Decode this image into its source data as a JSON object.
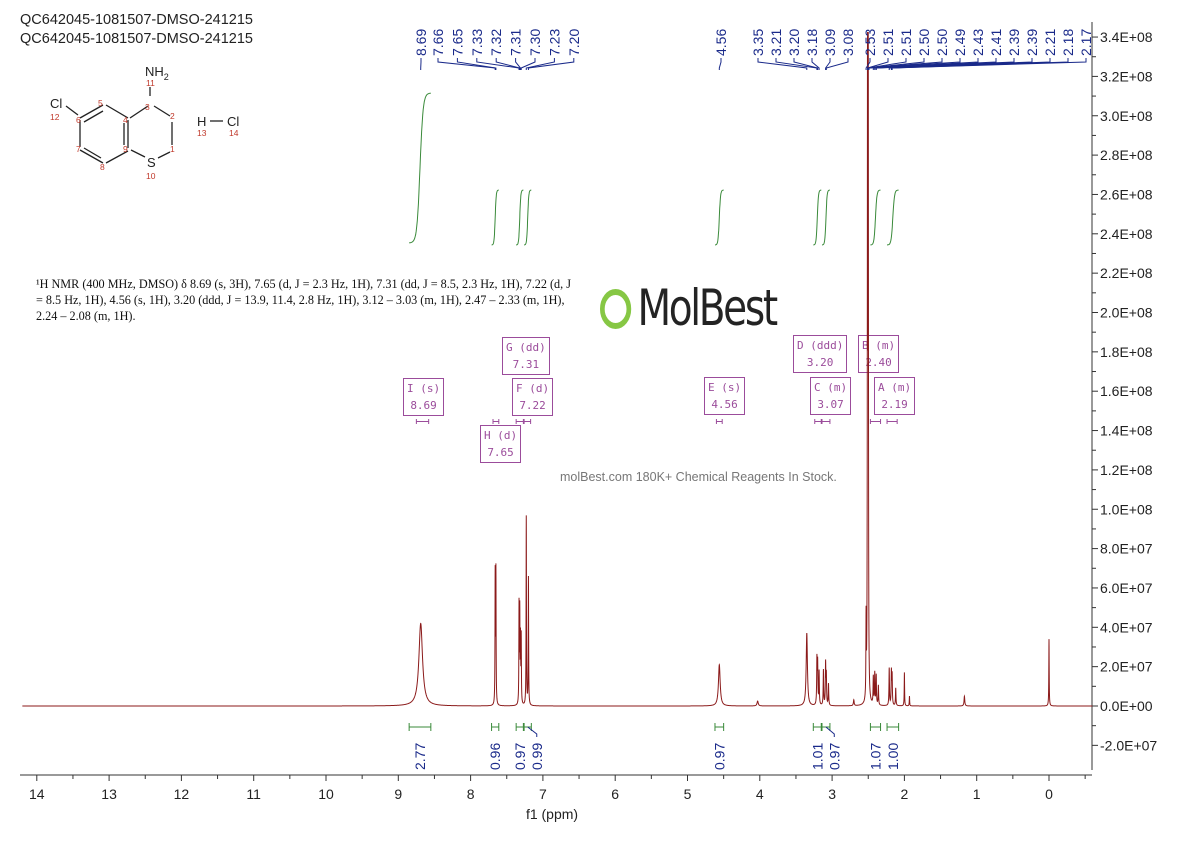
{
  "titles": [
    "QC642045-1081507-DMSO-241215",
    "QC642045-1081507-DMSO-241215"
  ],
  "structure": {
    "atoms": {
      "cl": "Cl",
      "nh2": "NH",
      "nh2_sub": "2",
      "s": "S",
      "h": "H",
      "cl2": "Cl"
    },
    "numbers": [
      "1",
      "2",
      "3",
      "4",
      "5",
      "6",
      "7",
      "8",
      "9",
      "10",
      "11",
      "12",
      "13",
      "14"
    ]
  },
  "nmr_text": "¹H NMR (400 MHz, DMSO) δ 8.69 (s, 3H), 7.65 (d, J = 2.3 Hz, 1H), 7.31 (dd, J = 8.5, 2.3 Hz, 1H), 7.22 (d, J = 8.5 Hz, 1H), 4.56 (s, 1H), 3.20 (ddd, J = 13.9, 11.4, 2.8 Hz, 1H), 3.12 – 3.03 (m, 1H), 2.47 – 2.33 (m, 1H), 2.24 – 2.08 (m, 1H).",
  "watermark": {
    "logo": "MolBest",
    "tagline": "molBest.com 180K+ Chemical Reagents In Stock."
  },
  "multiplets": [
    {
      "label": "I (s)",
      "shift": "8.69"
    },
    {
      "label": "G (dd)",
      "shift": "7.31"
    },
    {
      "label": "F (d)",
      "shift": "7.22"
    },
    {
      "label": "H (d)",
      "shift": "7.65"
    },
    {
      "label": "E (s)",
      "shift": "4.56"
    },
    {
      "label": "D (ddd)",
      "shift": "3.20"
    },
    {
      "label": "B (m)",
      "shift": "2.40"
    },
    {
      "label": "C (m)",
      "shift": "3.07"
    },
    {
      "label": "A (m)",
      "shift": "2.19"
    }
  ],
  "colors": {
    "spectrum": "#8b1a1a",
    "integral": "#3a8a3a",
    "label": "#1a2a8a",
    "multiplet": "#9b4c9b",
    "axis": "#333333"
  },
  "chart_data": {
    "type": "line",
    "title": "",
    "xlabel": "f1 (ppm)",
    "ylabel": "",
    "xlim": [
      14.2,
      -0.6
    ],
    "ylim": [
      -35000000.0,
      345000000.0
    ],
    "x_ticks": [
      "14",
      "13",
      "12",
      "11",
      "10",
      "9",
      "8",
      "7",
      "6",
      "5",
      "4",
      "3",
      "2",
      "1",
      "0"
    ],
    "y_ticks": [
      "3.4E+08",
      "3.2E+08",
      "3.0E+08",
      "2.8E+08",
      "2.6E+08",
      "2.4E+08",
      "2.2E+08",
      "2.0E+08",
      "1.8E+08",
      "1.6E+08",
      "1.4E+08",
      "1.2E+08",
      "1.0E+08",
      "8.0E+07",
      "6.0E+07",
      "4.0E+07",
      "2.0E+07",
      "0.0E+00",
      "-2.0E+07"
    ],
    "y_tick_values": [
      340000000.0,
      320000000.0,
      300000000.0,
      280000000.0,
      260000000.0,
      240000000.0,
      220000000.0,
      200000000.0,
      180000000.0,
      160000000.0,
      140000000.0,
      120000000.0,
      100000000.0,
      80000000.0,
      60000000.0,
      40000000.0,
      20000000.0,
      0,
      -20000000.0
    ],
    "peaks": [
      {
        "ppm": 8.69,
        "h": 42000000.0,
        "w": 0.03
      },
      {
        "ppm": 7.66,
        "h": 66000000.0,
        "w": 0.003
      },
      {
        "ppm": 7.65,
        "h": 67000000.0,
        "w": 0.003
      },
      {
        "ppm": 7.33,
        "h": 50000000.0,
        "w": 0.003
      },
      {
        "ppm": 7.32,
        "h": 46000000.0,
        "w": 0.003
      },
      {
        "ppm": 7.31,
        "h": 32000000.0,
        "w": 0.003
      },
      {
        "ppm": 7.3,
        "h": 34000000.0,
        "w": 0.003
      },
      {
        "ppm": 7.23,
        "h": 96000000.0,
        "w": 0.003
      },
      {
        "ppm": 7.2,
        "h": 65000000.0,
        "w": 0.003
      },
      {
        "ppm": 4.56,
        "h": 21000000.0,
        "w": 0.014
      },
      {
        "ppm": 4.03,
        "h": 2500000.0,
        "w": 0.01
      },
      {
        "ppm": 3.35,
        "h": 37000000.0,
        "w": 0.01
      },
      {
        "ppm": 3.21,
        "h": 23000000.0,
        "w": 0.004
      },
      {
        "ppm": 3.2,
        "h": 21000000.0,
        "w": 0.004
      },
      {
        "ppm": 3.18,
        "h": 17000000.0,
        "w": 0.004
      },
      {
        "ppm": 3.12,
        "h": 18000000.0,
        "w": 0.004
      },
      {
        "ppm": 3.09,
        "h": 21000000.0,
        "w": 0.004
      },
      {
        "ppm": 3.08,
        "h": 15000000.0,
        "w": 0.004
      },
      {
        "ppm": 3.05,
        "h": 11000000.0,
        "w": 0.004
      },
      {
        "ppm": 2.7,
        "h": 3000000.0,
        "w": 0.006
      },
      {
        "ppm": 2.53,
        "h": 40000000.0,
        "w": 0.003
      },
      {
        "ppm": 2.51,
        "h": 340000000.0,
        "w": 0.003
      },
      {
        "ppm": 2.5,
        "h": 340000000.0,
        "w": 0.003
      },
      {
        "ppm": 2.43,
        "h": 14000000.0,
        "w": 0.004
      },
      {
        "ppm": 2.41,
        "h": 16000000.0,
        "w": 0.004
      },
      {
        "ppm": 2.39,
        "h": 15000000.0,
        "w": 0.004
      },
      {
        "ppm": 2.36,
        "h": 10000000.0,
        "w": 0.004
      },
      {
        "ppm": 2.21,
        "h": 19000000.0,
        "w": 0.004
      },
      {
        "ppm": 2.18,
        "h": 17000000.0,
        "w": 0.004
      },
      {
        "ppm": 2.17,
        "h": 15000000.0,
        "w": 0.004
      },
      {
        "ppm": 2.12,
        "h": 9000000.0,
        "w": 0.004
      },
      {
        "ppm": 2.0,
        "h": 17000000.0,
        "w": 0.003
      },
      {
        "ppm": 1.93,
        "h": 5000000.0,
        "w": 0.003
      },
      {
        "ppm": 1.17,
        "h": 5000000.0,
        "w": 0.006
      },
      {
        "ppm": 0.0,
        "h": 34000000.0,
        "w": 0.003
      }
    ],
    "peak_labels": {
      "group1": [
        "8.69"
      ],
      "group2": [
        "7.66",
        "7.65",
        "7.33",
        "7.32",
        "7.31",
        "7.30",
        "7.23",
        "7.20"
      ],
      "group3": [
        "4.56"
      ],
      "group4": [
        "3.35",
        "3.21",
        "3.20",
        "3.18",
        "3.09",
        "3.08"
      ],
      "group5": [
        "2.53",
        "2.51",
        "2.51",
        "2.50",
        "2.50",
        "2.49",
        "2.43",
        "2.41",
        "2.39",
        "2.39",
        "2.21",
        "2.18",
        "2.17"
      ]
    },
    "integrals": [
      {
        "from": 8.85,
        "to": 8.55,
        "value": "2.77",
        "tall": true
      },
      {
        "from": 7.71,
        "to": 7.61,
        "value": "0.96"
      },
      {
        "from": 7.37,
        "to": 7.27,
        "value": "0.97"
      },
      {
        "from": 7.26,
        "to": 7.16,
        "value": "0.99"
      },
      {
        "from": 4.62,
        "to": 4.5,
        "value": "0.97"
      },
      {
        "from": 3.26,
        "to": 3.15,
        "value": "1.01"
      },
      {
        "from": 3.14,
        "to": 3.03,
        "value": "0.97"
      },
      {
        "from": 2.47,
        "to": 2.33,
        "value": "1.07"
      },
      {
        "from": 2.24,
        "to": 2.08,
        "value": "1.00"
      }
    ]
  }
}
